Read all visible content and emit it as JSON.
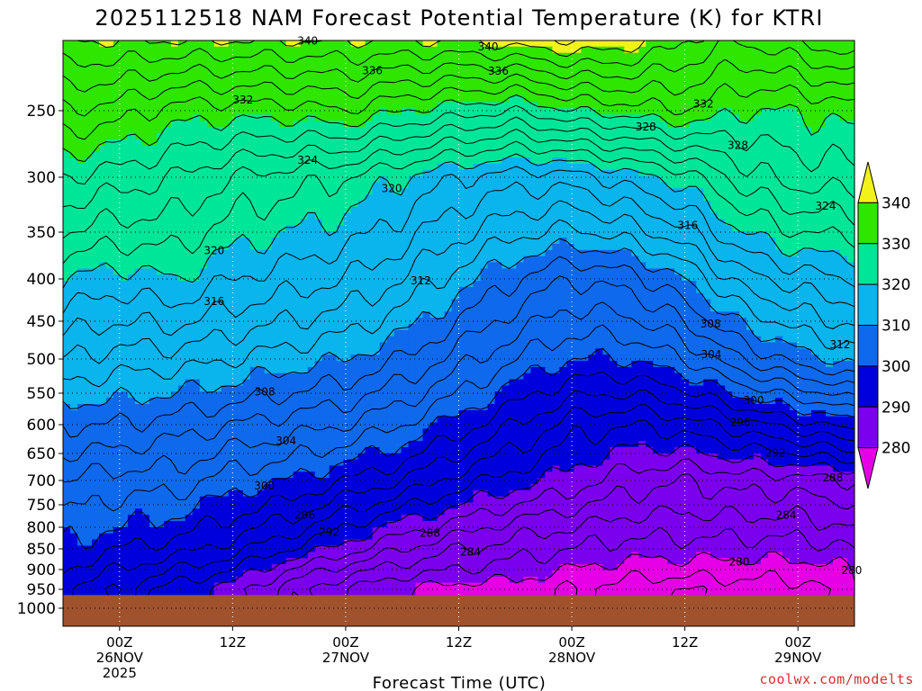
{
  "chart_data": {
    "type": "heatmap",
    "title": "2025112518 NAM Forecast Potential Temperature (K) for KTRI",
    "xlabel": "Forecast Time (UTC)",
    "ylabel": "",
    "credit": "coolwx.com/modelts",
    "y_axis": {
      "scale": "pressure",
      "ylim": [
        1025,
        200
      ],
      "ticks": [
        250,
        300,
        350,
        400,
        450,
        500,
        550,
        600,
        650,
        700,
        750,
        800,
        850,
        900,
        950,
        1000
      ]
    },
    "x_axis": {
      "ticks": [
        {
          "t": 6,
          "line1": "00Z",
          "line2": "26NOV",
          "line3": "2025"
        },
        {
          "t": 18,
          "line1": "12Z",
          "line2": "",
          "line3": ""
        },
        {
          "t": 30,
          "line1": "00Z",
          "line2": "27NOV",
          "line3": ""
        },
        {
          "t": 42,
          "line1": "12Z",
          "line2": "",
          "line3": ""
        },
        {
          "t": 54,
          "line1": "00Z",
          "line2": "28NOV",
          "line3": ""
        },
        {
          "t": 66,
          "line1": "12Z",
          "line2": "",
          "line3": ""
        },
        {
          "t": 78,
          "line1": "00Z",
          "line2": "29NOV",
          "line3": ""
        }
      ],
      "xlim": [
        0,
        84
      ]
    },
    "colorbar": {
      "labels": [
        340,
        330,
        320,
        310,
        300,
        290,
        280
      ],
      "levels": [
        {
          "min": 340,
          "color": "#f2f21a"
        },
        {
          "min": 330,
          "color": "#2ee600"
        },
        {
          "min": 320,
          "color": "#00e699"
        },
        {
          "min": 310,
          "color": "#0ab4ec"
        },
        {
          "min": 300,
          "color": "#0f69ec"
        },
        {
          "min": 290,
          "color": "#0000dd"
        },
        {
          "min": 280,
          "color": "#7a00ee"
        },
        {
          "min": 0,
          "color": "#e600e6"
        }
      ]
    },
    "ground_color": "#a0522d",
    "contour_interval": 2,
    "contour_label_values": [
      340,
      336,
      332,
      328,
      324,
      320,
      316,
      312,
      308,
      304,
      300,
      296,
      292,
      288,
      284,
      280,
      276
    ],
    "series": [
      {
        "name": "",
        "times": [
          0,
          6,
          12,
          18,
          24,
          30,
          36,
          42,
          48,
          54,
          60,
          66,
          72,
          78,
          84
        ],
        "theta_at_pressure": {
          "950": [
            296,
            294,
            291,
            289,
            285,
            282,
            280,
            279,
            279,
            278,
            277,
            276,
            277,
            277,
            279
          ],
          "900": [
            298,
            296,
            294,
            292,
            288,
            285,
            283,
            282,
            281,
            280,
            279,
            279,
            279,
            279,
            280
          ],
          "850": [
            300,
            298,
            297,
            295,
            292,
            289,
            286,
            284,
            283,
            282,
            281,
            281,
            281,
            281,
            282
          ],
          "800": [
            301,
            300,
            299,
            297,
            295,
            292,
            289,
            287,
            285,
            284,
            283,
            283,
            283,
            283,
            284
          ],
          "700": [
            304,
            303,
            303,
            301,
            300,
            298,
            296,
            293,
            291,
            289,
            287,
            286,
            287,
            287,
            288
          ],
          "600": [
            308,
            308,
            307,
            306,
            305,
            304,
            302,
            299,
            296,
            293,
            292,
            293,
            295,
            297,
            299
          ],
          "500": [
            314,
            313,
            313,
            312,
            311,
            310,
            308,
            305,
            302,
            300,
            300,
            302,
            306,
            309,
            311
          ],
          "400": [
            320,
            319,
            320,
            318,
            317,
            316,
            314,
            311,
            308,
            306,
            307,
            310,
            315,
            317,
            318
          ],
          "300": [
            328,
            327,
            326,
            324,
            323,
            322,
            320,
            318,
            317,
            317,
            319,
            321,
            325,
            327,
            327
          ],
          "250": [
            334,
            333,
            331,
            331,
            331,
            332,
            330,
            329,
            328,
            330,
            331,
            332,
            330,
            330,
            331
          ],
          "200": [
            340,
            340,
            340,
            340,
            340,
            340,
            340,
            340,
            341,
            342,
            341,
            338,
            336,
            338,
            340
          ]
        }
      }
    ]
  }
}
